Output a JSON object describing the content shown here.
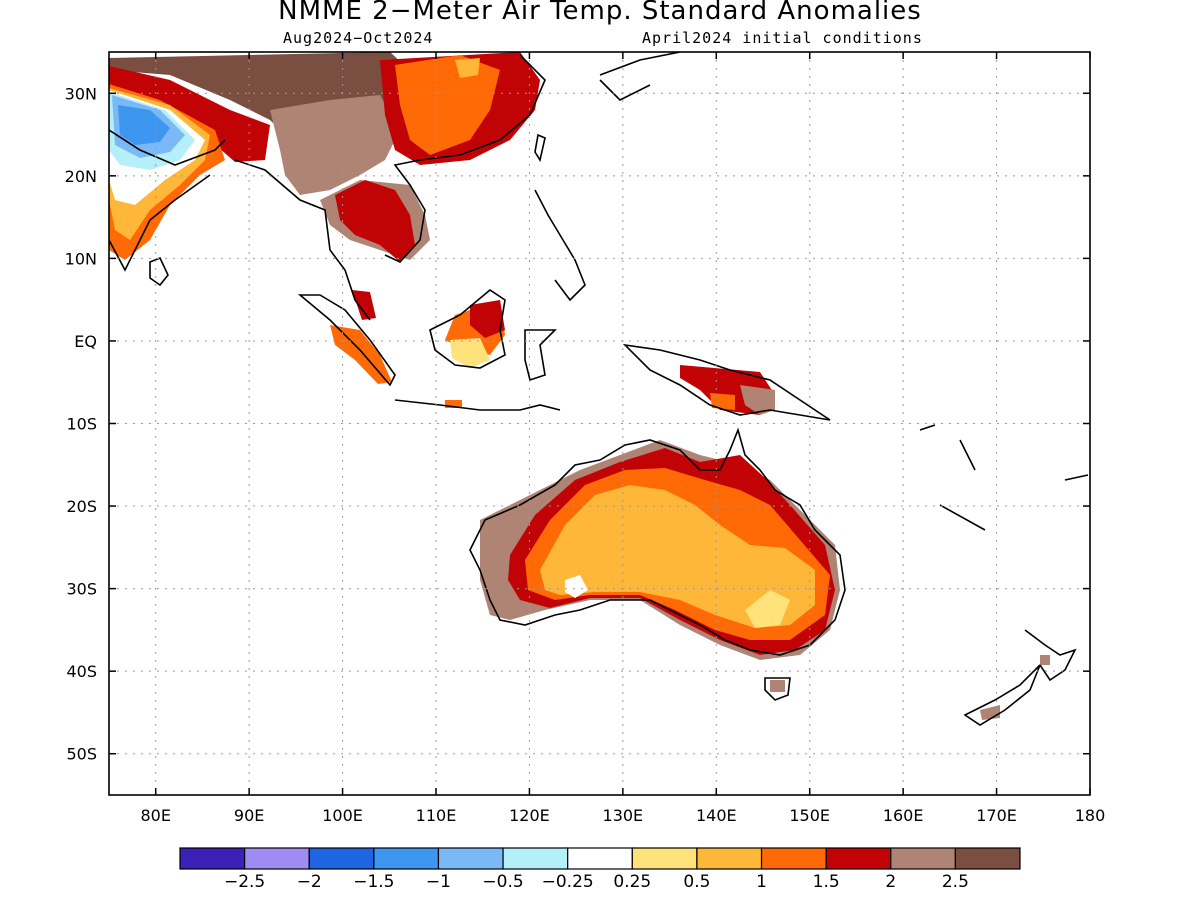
{
  "title": "NMME 2−Meter Air Temp. Standard Anomalies",
  "period": "Aug2024−Oct2024",
  "init": "April2024 initial conditions",
  "lat_labels": [
    "30N",
    "20N",
    "10N",
    "EQ",
    "10S",
    "20S",
    "30S",
    "40S",
    "50S"
  ],
  "lon_labels": [
    "80E",
    "90E",
    "100E",
    "110E",
    "120E",
    "130E",
    "140E",
    "150E",
    "160E",
    "170E",
    "180"
  ],
  "legend": {
    "labels": [
      "−2.5",
      "−2",
      "−1.5",
      "−1",
      "−0.5",
      "−0.25",
      "0.25",
      "0.5",
      "1",
      "1.5",
      "2",
      "2.5"
    ],
    "colors": [
      "#3b21b7",
      "#9f8cf2",
      "#1e64e3",
      "#3d96ef",
      "#7ab9f5",
      "#b4effa",
      "#ffffff",
      "#ffe27a",
      "#ffb73a",
      "#ff6a06",
      "#c10306",
      "#b08474",
      "#7a4e40"
    ]
  }
}
